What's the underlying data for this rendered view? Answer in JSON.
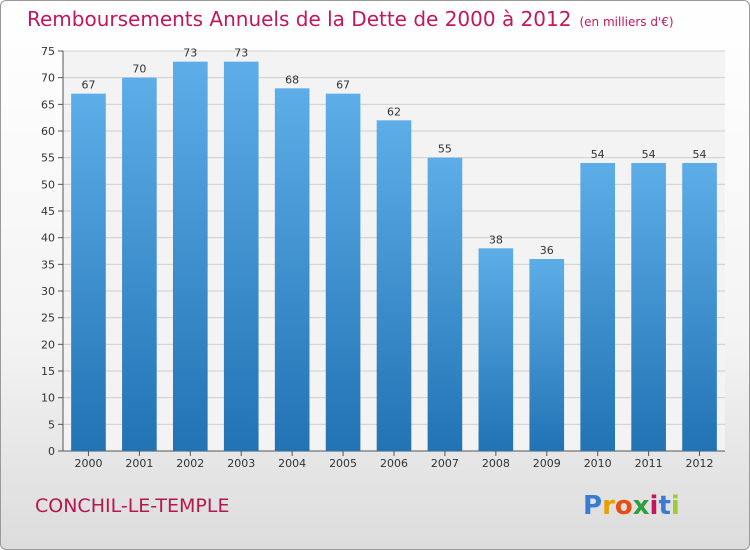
{
  "title": "Remboursements Annuels de la Dette de 2000 à 2012",
  "subtitle": "(en milliers d'€)",
  "commune": "CONCHIL-LE-TEMPLE",
  "logo": {
    "letters": [
      "P",
      "r",
      "o",
      "x",
      "i",
      "t",
      "i"
    ],
    "colors": [
      "#3a7bd5",
      "#e8a000",
      "#e84e0f",
      "#2e9e3e",
      "#c2185b",
      "#3a7bd5",
      "#9acd32"
    ]
  },
  "chart_data": {
    "type": "bar",
    "categories": [
      "2000",
      "2001",
      "2002",
      "2003",
      "2004",
      "2005",
      "2006",
      "2007",
      "2008",
      "2009",
      "2010",
      "2011",
      "2012"
    ],
    "values": [
      67,
      70,
      73,
      73,
      68,
      67,
      62,
      55,
      38,
      36,
      54,
      54,
      54
    ],
    "ylim": [
      0,
      75
    ],
    "yticks": [
      0,
      5,
      10,
      15,
      20,
      25,
      30,
      35,
      40,
      45,
      50,
      55,
      60,
      65,
      70,
      75
    ],
    "grid": true,
    "bar_color_top": "#5dade8",
    "bar_color_bottom": "#2273b4"
  }
}
